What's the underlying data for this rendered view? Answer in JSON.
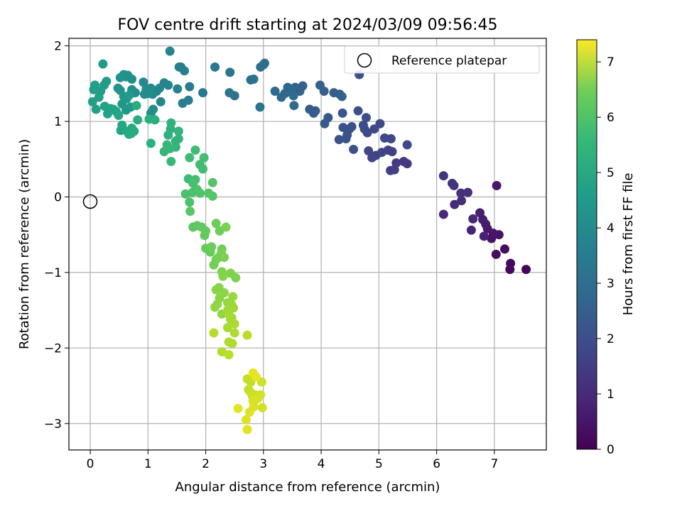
{
  "chart_data": {
    "type": "scatter",
    "title": "FOV centre drift starting at 2024/03/09 09:56:45",
    "xlabel": "Angular distance from reference (arcmin)",
    "ylabel": "Rotation from reference (arcmin)",
    "xlim": [
      -0.37,
      7.9
    ],
    "ylim": [
      -3.35,
      2.1
    ],
    "xticks": [
      "0",
      "1",
      "2",
      "3",
      "4",
      "5",
      "6",
      "7"
    ],
    "yticks": [
      "−3",
      "−2",
      "−1",
      "0",
      "1",
      "2"
    ],
    "grid": true,
    "legend": {
      "position": "top-right",
      "entries": [
        "Reference platepar"
      ]
    },
    "reference_point": {
      "x": 0,
      "y": 0
    },
    "colorbar": {
      "label": "Hours from first FF file",
      "range": [
        0,
        7.4
      ],
      "ticks": [
        "0",
        "1",
        "2",
        "3",
        "4",
        "5",
        "6",
        "7"
      ],
      "colormap": "viridis"
    },
    "points": [
      [
        7.55,
        -0.96,
        0.1
      ],
      [
        7.27,
        -0.96,
        0.15
      ],
      [
        7.28,
        -0.88,
        0.2
      ],
      [
        7.18,
        -0.69,
        0.25
      ],
      [
        7.03,
        -0.76,
        0.3
      ],
      [
        7.08,
        -0.5,
        0.35
      ],
      [
        6.95,
        -0.55,
        0.4
      ],
      [
        6.98,
        -0.48,
        0.45
      ],
      [
        6.88,
        -0.42,
        0.5
      ],
      [
        6.85,
        -0.36,
        0.55
      ],
      [
        6.8,
        -0.3,
        0.6
      ],
      [
        6.75,
        -0.21,
        0.65
      ],
      [
        6.82,
        -0.52,
        0.7
      ],
      [
        6.6,
        -0.44,
        0.75
      ],
      [
        6.63,
        -0.29,
        0.8
      ],
      [
        7.04,
        0.15,
        0.5
      ],
      [
        6.12,
        -0.23,
        0.85
      ],
      [
        6.31,
        -0.1,
        0.9
      ],
      [
        6.43,
        -0.05,
        0.95
      ],
      [
        6.42,
        0.05,
        1.0
      ],
      [
        6.54,
        0.06,
        1.05
      ],
      [
        6.27,
        0.18,
        1.1
      ],
      [
        6.3,
        0.15,
        1.12
      ],
      [
        6.12,
        0.28,
        1.15
      ],
      [
        5.49,
        0.44,
        1.2
      ],
      [
        5.43,
        0.47,
        1.25
      ],
      [
        5.3,
        0.45,
        1.3
      ],
      [
        5.27,
        0.36,
        1.35
      ],
      [
        5.2,
        0.35,
        1.4
      ],
      [
        5.23,
        0.6,
        1.42
      ],
      [
        5.16,
        0.62,
        1.45
      ],
      [
        5.05,
        0.59,
        1.48
      ],
      [
        4.95,
        0.55,
        1.5
      ],
      [
        4.88,
        0.52,
        1.52
      ],
      [
        4.82,
        0.61,
        1.55
      ],
      [
        5.21,
        0.77,
        1.6
      ],
      [
        5.1,
        0.78,
        1.58
      ],
      [
        5.49,
        0.69,
        1.6
      ],
      [
        5.02,
        0.97,
        1.62
      ],
      [
        4.92,
        0.9,
        1.65
      ],
      [
        4.8,
        0.85,
        1.7
      ],
      [
        4.75,
        0.9,
        1.72
      ],
      [
        4.73,
        0.95,
        1.75
      ],
      [
        4.78,
        1.05,
        1.78
      ],
      [
        4.64,
        1.14,
        1.8
      ],
      [
        4.49,
        0.9,
        1.82
      ],
      [
        4.53,
        0.93,
        1.85
      ],
      [
        4.38,
        0.92,
        1.88
      ],
      [
        4.45,
        0.82,
        1.9
      ],
      [
        4.31,
        0.76,
        1.9
      ],
      [
        4.43,
        0.77,
        1.92
      ],
      [
        4.56,
        0.63,
        1.85
      ],
      [
        4.66,
        1.62,
        1.8
      ],
      [
        4.37,
        1.11,
        1.95
      ],
      [
        4.12,
        1.05,
        2.0
      ],
      [
        4.06,
        0.97,
        2.05
      ],
      [
        3.9,
        1.14,
        2.1
      ],
      [
        3.8,
        1.16,
        2.12
      ],
      [
        3.87,
        1.11,
        2.15
      ],
      [
        4.22,
        1.38,
        2.2
      ],
      [
        4.32,
        1.36,
        2.22
      ],
      [
        4.36,
        1.33,
        2.25
      ],
      [
        4.05,
        1.4,
        2.28
      ],
      [
        3.98,
        1.48,
        2.3
      ],
      [
        3.68,
        1.47,
        2.35
      ],
      [
        3.63,
        1.4,
        2.38
      ],
      [
        3.55,
        1.45,
        2.4
      ],
      [
        3.49,
        1.43,
        2.42
      ],
      [
        3.42,
        1.45,
        2.45
      ],
      [
        3.44,
        1.39,
        2.48
      ],
      [
        3.37,
        1.37,
        2.5
      ],
      [
        3.31,
        1.32,
        2.52
      ],
      [
        3.2,
        1.4,
        2.55
      ],
      [
        3.52,
        1.34,
        2.58
      ],
      [
        3.53,
        1.21,
        2.6
      ],
      [
        2.95,
        1.72,
        2.65
      ],
      [
        3.0,
        1.75,
        2.68
      ],
      [
        3.02,
        1.77,
        2.7
      ],
      [
        2.83,
        1.56,
        2.75
      ],
      [
        2.78,
        1.55,
        2.78
      ],
      [
        2.94,
        1.19,
        2.8
      ],
      [
        2.5,
        1.34,
        2.85
      ],
      [
        2.41,
        1.38,
        2.88
      ],
      [
        2.42,
        1.65,
        2.9
      ],
      [
        2.16,
        1.72,
        2.95
      ],
      [
        1.95,
        1.38,
        3.0
      ],
      [
        1.72,
        1.46,
        3.05
      ],
      [
        1.7,
        1.28,
        3.1
      ],
      [
        1.6,
        1.24,
        3.12
      ],
      [
        1.57,
        1.72,
        3.15
      ],
      [
        1.54,
        1.72,
        3.18
      ],
      [
        1.63,
        1.67,
        3.2
      ],
      [
        1.51,
        1.43,
        3.25
      ],
      [
        1.38,
        1.93,
        3.3
      ],
      [
        1.35,
        1.48,
        3.32
      ],
      [
        1.28,
        1.51,
        3.35
      ],
      [
        1.2,
        1.44,
        3.38
      ],
      [
        1.15,
        1.4,
        3.4
      ],
      [
        1.22,
        1.26,
        3.42
      ],
      [
        1.08,
        1.36,
        3.45
      ],
      [
        1.05,
        1.44,
        3.48
      ],
      [
        0.92,
        1.52,
        3.5
      ],
      [
        0.97,
        1.43,
        3.52
      ],
      [
        0.94,
        1.36,
        3.55
      ],
      [
        1.0,
        1.37,
        3.58
      ],
      [
        1.05,
        1.11,
        3.6
      ],
      [
        1.09,
        1.16,
        3.62
      ],
      [
        0.78,
        1.38,
        3.65
      ],
      [
        0.72,
        1.42,
        3.68
      ],
      [
        0.72,
        1.56,
        3.7
      ],
      [
        0.62,
        1.59,
        3.72
      ],
      [
        0.58,
        1.62,
        3.75
      ],
      [
        0.65,
        1.61,
        3.78
      ],
      [
        0.52,
        1.58,
        3.8
      ],
      [
        0.48,
        1.44,
        3.82
      ],
      [
        0.52,
        1.41,
        3.85
      ],
      [
        0.58,
        1.33,
        3.88
      ],
      [
        0.55,
        1.23,
        3.9
      ],
      [
        0.62,
        1.15,
        3.92
      ],
      [
        0.7,
        1.19,
        3.95
      ],
      [
        0.63,
        1.3,
        3.98
      ],
      [
        0.68,
        1.35,
        4.0
      ],
      [
        0.22,
        1.76,
        4.02
      ],
      [
        0.28,
        1.53,
        4.05
      ],
      [
        0.24,
        1.48,
        4.08
      ],
      [
        0.18,
        1.4,
        4.1
      ],
      [
        0.08,
        1.48,
        4.12
      ],
      [
        0.06,
        1.42,
        4.15
      ],
      [
        0.15,
        1.32,
        4.18
      ],
      [
        0.04,
        1.26,
        4.2
      ],
      [
        0.1,
        1.16,
        4.22
      ],
      [
        0.25,
        1.2,
        4.25
      ],
      [
        0.3,
        1.1,
        4.28
      ],
      [
        0.35,
        1.17,
        4.3
      ],
      [
        0.4,
        1.16,
        4.32
      ],
      [
        0.45,
        1.13,
        4.35
      ],
      [
        0.49,
        1.08,
        4.38
      ],
      [
        0.53,
        0.88,
        4.4
      ],
      [
        0.55,
        0.95,
        4.42
      ],
      [
        0.64,
        0.87,
        4.45
      ],
      [
        0.67,
        0.83,
        4.48
      ],
      [
        0.72,
        0.91,
        4.5
      ],
      [
        0.76,
        0.87,
        4.52
      ],
      [
        0.71,
        0.84,
        4.55
      ],
      [
        0.8,
        1.21,
        4.58
      ],
      [
        0.82,
        1.02,
        4.6
      ],
      [
        1.02,
        1.03,
        4.62
      ],
      [
        1.12,
        1.02,
        4.65
      ],
      [
        1.05,
        0.71,
        4.68
      ],
      [
        1.35,
        0.82,
        4.7
      ],
      [
        1.39,
        0.9,
        4.72
      ],
      [
        1.4,
        0.98,
        4.75
      ],
      [
        1.48,
        0.74,
        4.78
      ],
      [
        1.53,
        0.77,
        4.8
      ],
      [
        1.53,
        0.87,
        4.82
      ],
      [
        1.48,
        0.66,
        4.85
      ],
      [
        1.38,
        0.64,
        4.88
      ],
      [
        1.28,
        0.6,
        4.9
      ],
      [
        1.33,
        0.69,
        4.92
      ],
      [
        1.4,
        0.47,
        4.95
      ],
      [
        1.7,
        0.24,
        5.0
      ],
      [
        1.72,
        0.52,
        5.05
      ],
      [
        1.82,
        0.62,
        5.08
      ],
      [
        1.9,
        0.43,
        5.1
      ],
      [
        1.95,
        0.37,
        5.12
      ],
      [
        1.97,
        0.52,
        5.15
      ],
      [
        1.82,
        0.23,
        5.2
      ],
      [
        1.78,
        0.18,
        5.22
      ],
      [
        1.65,
        0.04,
        5.25
      ],
      [
        1.72,
        -0.07,
        5.28
      ],
      [
        1.77,
        0.06,
        5.3
      ],
      [
        1.85,
        0.1,
        5.32
      ],
      [
        1.9,
        0.05,
        5.35
      ],
      [
        2.05,
        0.05,
        5.38
      ],
      [
        2.12,
        0.19,
        5.4
      ],
      [
        2.12,
        0.01,
        5.42
      ],
      [
        1.73,
        -0.19,
        5.45
      ],
      [
        1.78,
        -0.4,
        5.5
      ],
      [
        1.85,
        -0.38,
        5.55
      ],
      [
        1.93,
        -0.4,
        5.58
      ],
      [
        2.0,
        -0.45,
        5.6
      ],
      [
        1.98,
        -0.51,
        5.62
      ],
      [
        2.0,
        -0.68,
        5.65
      ],
      [
        2.08,
        -0.73,
        5.68
      ],
      [
        2.1,
        -0.66,
        5.7
      ],
      [
        2.18,
        -0.35,
        5.72
      ],
      [
        2.24,
        -0.45,
        5.75
      ],
      [
        2.28,
        -0.69,
        5.78
      ],
      [
        2.18,
        -0.83,
        5.8
      ],
      [
        2.14,
        -0.9,
        5.82
      ],
      [
        2.22,
        -0.8,
        5.85
      ],
      [
        2.27,
        -0.75,
        5.88
      ],
      [
        2.35,
        -0.4,
        5.9
      ],
      [
        2.32,
        -0.8,
        5.92
      ],
      [
        2.43,
        -1.01,
        5.95
      ],
      [
        2.52,
        -1.07,
        5.98
      ],
      [
        2.28,
        -0.99,
        6.0
      ],
      [
        2.3,
        -1.05,
        6.02
      ],
      [
        2.23,
        -1.2,
        6.05
      ],
      [
        2.18,
        -1.23,
        6.08
      ],
      [
        2.24,
        -1.34,
        6.1
      ],
      [
        2.32,
        -1.27,
        6.12
      ],
      [
        2.2,
        -1.42,
        6.15
      ],
      [
        2.16,
        -1.46,
        6.18
      ],
      [
        2.28,
        -1.55,
        6.2
      ],
      [
        2.38,
        -1.4,
        6.22
      ],
      [
        2.47,
        -1.32,
        6.25
      ],
      [
        2.45,
        -1.43,
        6.28
      ],
      [
        2.48,
        -1.47,
        6.3
      ],
      [
        2.38,
        -1.5,
        6.32
      ],
      [
        2.4,
        -1.55,
        6.35
      ],
      [
        2.45,
        -1.6,
        6.38
      ],
      [
        2.43,
        -1.62,
        6.4
      ],
      [
        2.38,
        -1.73,
        6.42
      ],
      [
        2.5,
        -1.68,
        6.45
      ],
      [
        2.5,
        -1.8,
        6.48
      ],
      [
        2.4,
        -1.92,
        6.5
      ],
      [
        2.46,
        -1.94,
        6.52
      ],
      [
        2.28,
        -2.05,
        6.55
      ],
      [
        2.14,
        -1.8,
        6.58
      ],
      [
        2.4,
        -2.09,
        6.6
      ],
      [
        2.72,
        -1.83,
        6.62
      ],
      [
        2.72,
        -2.41,
        6.7
      ],
      [
        2.78,
        -2.45,
        6.72
      ],
      [
        2.74,
        -2.55,
        6.75
      ],
      [
        2.77,
        -2.58,
        6.78
      ],
      [
        2.81,
        -2.64,
        6.8
      ],
      [
        2.85,
        -2.62,
        6.82
      ],
      [
        2.97,
        -2.45,
        6.85
      ],
      [
        2.95,
        -2.62,
        6.88
      ],
      [
        2.98,
        -2.79,
        6.9
      ],
      [
        2.9,
        -2.67,
        6.92
      ],
      [
        2.82,
        -2.7,
        6.95
      ],
      [
        2.84,
        -2.7,
        6.98
      ],
      [
        2.83,
        -2.78,
        7.0
      ],
      [
        2.76,
        -2.85,
        7.02
      ],
      [
        2.7,
        -2.95,
        7.05
      ],
      [
        2.72,
        -3.08,
        7.08
      ],
      [
        2.56,
        -2.8,
        7.1
      ],
      [
        2.82,
        -2.33,
        7.12
      ],
      [
        2.87,
        -2.38,
        7.15
      ]
    ]
  }
}
